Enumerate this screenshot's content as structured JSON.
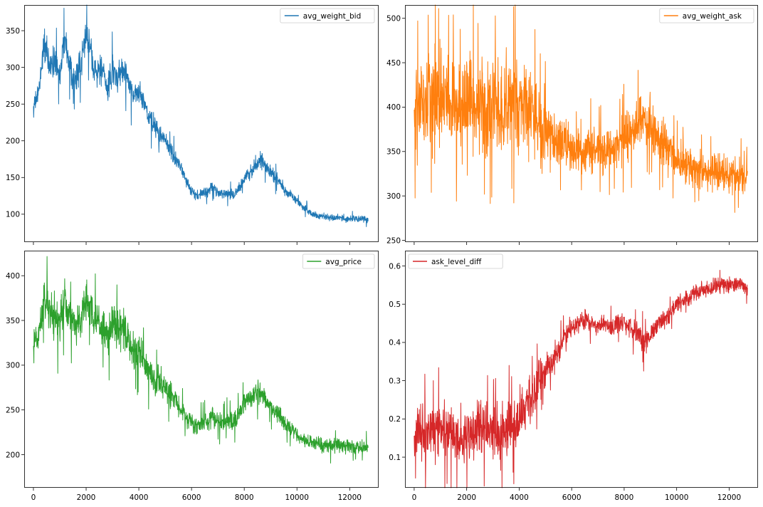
{
  "chart_data": [
    {
      "type": "line",
      "legend_position": "upper right",
      "xlim": [
        -350,
        13100
      ],
      "ylim": [
        62,
        385
      ],
      "x_ticks": [
        0,
        2000,
        4000,
        6000,
        8000,
        10000,
        12000
      ],
      "x_tick_labels": [
        "",
        "",
        "",
        "",
        "",
        "",
        ""
      ],
      "y_ticks": [
        100,
        150,
        200,
        250,
        300,
        350
      ],
      "y_tick_labels": [
        "100",
        "150",
        "200",
        "250",
        "300",
        "350"
      ],
      "noise": 0.7,
      "series": [
        {
          "name": "avg_weight_bid",
          "color": "#1f77b4",
          "x": [
            0,
            200,
            400,
            600,
            800,
            1000,
            1200,
            1400,
            1600,
            1800,
            2000,
            2200,
            2400,
            2600,
            2800,
            3000,
            3200,
            3400,
            3600,
            3800,
            4000,
            4200,
            4400,
            4600,
            4800,
            5000,
            5200,
            5400,
            5600,
            5800,
            6000,
            6200,
            6400,
            6600,
            6800,
            7000,
            7200,
            7400,
            7600,
            7800,
            8000,
            8200,
            8400,
            8600,
            8800,
            9000,
            9200,
            9400,
            9600,
            9800,
            10000,
            10200,
            10400,
            10600,
            10800,
            11000,
            11200,
            11400,
            11600,
            11800,
            12000,
            12200,
            12400,
            12700
          ],
          "center": [
            245,
            265,
            335,
            300,
            310,
            290,
            345,
            300,
            285,
            300,
            345,
            320,
            290,
            295,
            270,
            300,
            280,
            300,
            280,
            260,
            270,
            250,
            230,
            220,
            210,
            200,
            185,
            175,
            165,
            145,
            130,
            125,
            128,
            130,
            138,
            130,
            128,
            130,
            125,
            135,
            150,
            155,
            165,
            175,
            165,
            158,
            150,
            140,
            130,
            125,
            118,
            110,
            105,
            100,
            98,
            97,
            96,
            95,
            95,
            94,
            93,
            94,
            93,
            92
          ],
          "spread": [
            25,
            30,
            45,
            45,
            45,
            45,
            45,
            45,
            45,
            45,
            45,
            45,
            45,
            45,
            45,
            40,
            40,
            40,
            40,
            35,
            35,
            35,
            30,
            30,
            30,
            28,
            25,
            22,
            20,
            18,
            15,
            15,
            15,
            15,
            15,
            15,
            15,
            15,
            15,
            15,
            18,
            20,
            22,
            25,
            22,
            20,
            18,
            16,
            14,
            12,
            10,
            10,
            10,
            10,
            10,
            10,
            10,
            10,
            10,
            10,
            10,
            10,
            10,
            10
          ]
        }
      ]
    },
    {
      "type": "line",
      "legend_position": "upper right",
      "xlim": [
        -350,
        13100
      ],
      "ylim": [
        248,
        515
      ],
      "x_ticks": [
        0,
        2000,
        4000,
        6000,
        8000,
        10000,
        12000
      ],
      "x_tick_labels": [
        "",
        "",
        "",
        "",
        "",
        "",
        ""
      ],
      "y_ticks": [
        250,
        300,
        350,
        400,
        450,
        500
      ],
      "y_tick_labels": [
        "250",
        "300",
        "350",
        "400",
        "450",
        "500"
      ],
      "noise": 0.85,
      "series": [
        {
          "name": "avg_weight_ask",
          "color": "#ff7f0e",
          "x": [
            0,
            250,
            500,
            750,
            1000,
            1250,
            1500,
            1750,
            2000,
            2250,
            2500,
            2750,
            3000,
            3250,
            3500,
            3750,
            4000,
            4250,
            4500,
            4750,
            5000,
            5250,
            5500,
            5750,
            6000,
            6250,
            6500,
            6750,
            7000,
            7250,
            7500,
            7750,
            8000,
            8250,
            8500,
            8750,
            9000,
            9250,
            9500,
            9750,
            10000,
            10250,
            10500,
            10750,
            11000,
            11250,
            11500,
            11750,
            12000,
            12250,
            12500,
            12700
          ],
          "center": [
            380,
            400,
            410,
            405,
            415,
            410,
            405,
            400,
            410,
            405,
            400,
            395,
            405,
            400,
            395,
            400,
            405,
            400,
            395,
            385,
            375,
            370,
            365,
            360,
            355,
            350,
            352,
            355,
            350,
            352,
            355,
            358,
            365,
            372,
            378,
            385,
            380,
            370,
            360,
            350,
            340,
            335,
            332,
            330,
            328,
            325,
            325,
            324,
            323,
            323,
            322,
            322
          ],
          "spread": [
            80,
            90,
            95,
            95,
            95,
            95,
            95,
            95,
            95,
            95,
            95,
            95,
            95,
            95,
            95,
            95,
            90,
            90,
            85,
            80,
            70,
            60,
            55,
            50,
            45,
            45,
            45,
            45,
            45,
            45,
            45,
            45,
            50,
            50,
            50,
            50,
            50,
            48,
            45,
            42,
            40,
            38,
            36,
            35,
            35,
            35,
            35,
            35,
            35,
            35,
            35,
            35
          ]
        }
      ]
    },
    {
      "type": "line",
      "legend_position": "upper right",
      "xlim": [
        -350,
        13100
      ],
      "ylim": [
        163,
        428
      ],
      "x_ticks": [
        0,
        2000,
        4000,
        6000,
        8000,
        10000,
        12000
      ],
      "x_tick_labels": [
        "0",
        "2000",
        "4000",
        "6000",
        "8000",
        "10000",
        "12000"
      ],
      "y_ticks": [
        200,
        250,
        300,
        350,
        400
      ],
      "y_tick_labels": [
        "200",
        "250",
        "300",
        "350",
        "400"
      ],
      "noise": 0.75,
      "series": [
        {
          "name": "avg_price",
          "color": "#2ca02c",
          "x": [
            0,
            200,
            400,
            600,
            800,
            1000,
            1200,
            1400,
            1600,
            1800,
            2000,
            2200,
            2400,
            2600,
            2800,
            3000,
            3200,
            3400,
            3600,
            3800,
            4000,
            4200,
            4400,
            4600,
            4800,
            5000,
            5200,
            5400,
            5600,
            5800,
            6000,
            6200,
            6400,
            6600,
            6800,
            7000,
            7200,
            7400,
            7600,
            7800,
            8000,
            8200,
            8400,
            8600,
            8800,
            9000,
            9200,
            9400,
            9600,
            9800,
            10000,
            10200,
            10400,
            10600,
            10800,
            11000,
            11200,
            11400,
            11600,
            11800,
            12000,
            12200,
            12400,
            12700
          ],
          "center": [
            320,
            335,
            375,
            360,
            355,
            345,
            375,
            350,
            340,
            350,
            375,
            360,
            345,
            345,
            330,
            345,
            335,
            345,
            330,
            310,
            320,
            300,
            290,
            285,
            280,
            275,
            268,
            260,
            250,
            240,
            235,
            232,
            235,
            238,
            242,
            238,
            236,
            240,
            236,
            245,
            258,
            262,
            268,
            272,
            262,
            255,
            248,
            240,
            232,
            228,
            222,
            218,
            215,
            213,
            212,
            211,
            210,
            210,
            210,
            209,
            208,
            209,
            208,
            208
          ],
          "spread": [
            30,
            35,
            45,
            45,
            45,
            45,
            45,
            45,
            45,
            45,
            45,
            45,
            45,
            45,
            45,
            45,
            45,
            45,
            45,
            42,
            42,
            40,
            38,
            35,
            32,
            30,
            28,
            25,
            22,
            20,
            20,
            20,
            20,
            20,
            20,
            20,
            20,
            20,
            20,
            20,
            22,
            25,
            25,
            25,
            22,
            20,
            20,
            18,
            16,
            15,
            15,
            15,
            15,
            15,
            15,
            15,
            15,
            15,
            15,
            15,
            15,
            15,
            15,
            15
          ]
        }
      ]
    },
    {
      "type": "line",
      "legend_position": "upper left",
      "xlim": [
        -350,
        13100
      ],
      "ylim": [
        0.02,
        0.64
      ],
      "x_ticks": [
        0,
        2000,
        4000,
        6000,
        8000,
        10000,
        12000
      ],
      "x_tick_labels": [
        "0",
        "2000",
        "4000",
        "6000",
        "8000",
        "10000",
        "12000"
      ],
      "y_ticks": [
        0.1,
        0.2,
        0.3,
        0.4,
        0.5,
        0.6
      ],
      "y_tick_labels": [
        "0.1",
        "0.2",
        "0.3",
        "0.4",
        "0.5",
        "0.6"
      ],
      "noise": 0.85,
      "series": [
        {
          "name": "ask_level_diff",
          "color": "#d62728",
          "x": [
            0,
            250,
            500,
            750,
            1000,
            1250,
            1500,
            1750,
            2000,
            2250,
            2500,
            2750,
            3000,
            3250,
            3500,
            3750,
            4000,
            4250,
            4500,
            4750,
            5000,
            5250,
            5500,
            5750,
            6000,
            6250,
            6500,
            6750,
            7000,
            7250,
            7500,
            7750,
            8000,
            8250,
            8500,
            8750,
            9000,
            9250,
            9500,
            9750,
            10000,
            10250,
            10500,
            10750,
            11000,
            11250,
            11500,
            11750,
            12000,
            12250,
            12500,
            12700
          ],
          "center": [
            0.16,
            0.17,
            0.15,
            0.16,
            0.17,
            0.16,
            0.15,
            0.16,
            0.15,
            0.16,
            0.17,
            0.16,
            0.17,
            0.16,
            0.18,
            0.19,
            0.2,
            0.22,
            0.25,
            0.3,
            0.33,
            0.35,
            0.38,
            0.42,
            0.44,
            0.45,
            0.46,
            0.45,
            0.44,
            0.45,
            0.44,
            0.45,
            0.45,
            0.44,
            0.42,
            0.4,
            0.42,
            0.45,
            0.46,
            0.48,
            0.5,
            0.51,
            0.52,
            0.53,
            0.54,
            0.54,
            0.55,
            0.55,
            0.55,
            0.55,
            0.55,
            0.54
          ],
          "spread": [
            0.12,
            0.13,
            0.13,
            0.13,
            0.13,
            0.13,
            0.13,
            0.13,
            0.13,
            0.13,
            0.13,
            0.13,
            0.13,
            0.13,
            0.13,
            0.13,
            0.13,
            0.12,
            0.12,
            0.1,
            0.08,
            0.07,
            0.06,
            0.05,
            0.045,
            0.045,
            0.045,
            0.045,
            0.045,
            0.045,
            0.045,
            0.045,
            0.045,
            0.05,
            0.06,
            0.06,
            0.05,
            0.045,
            0.04,
            0.04,
            0.035,
            0.035,
            0.035,
            0.035,
            0.035,
            0.035,
            0.035,
            0.035,
            0.035,
            0.035,
            0.035,
            0.035
          ]
        }
      ]
    }
  ]
}
